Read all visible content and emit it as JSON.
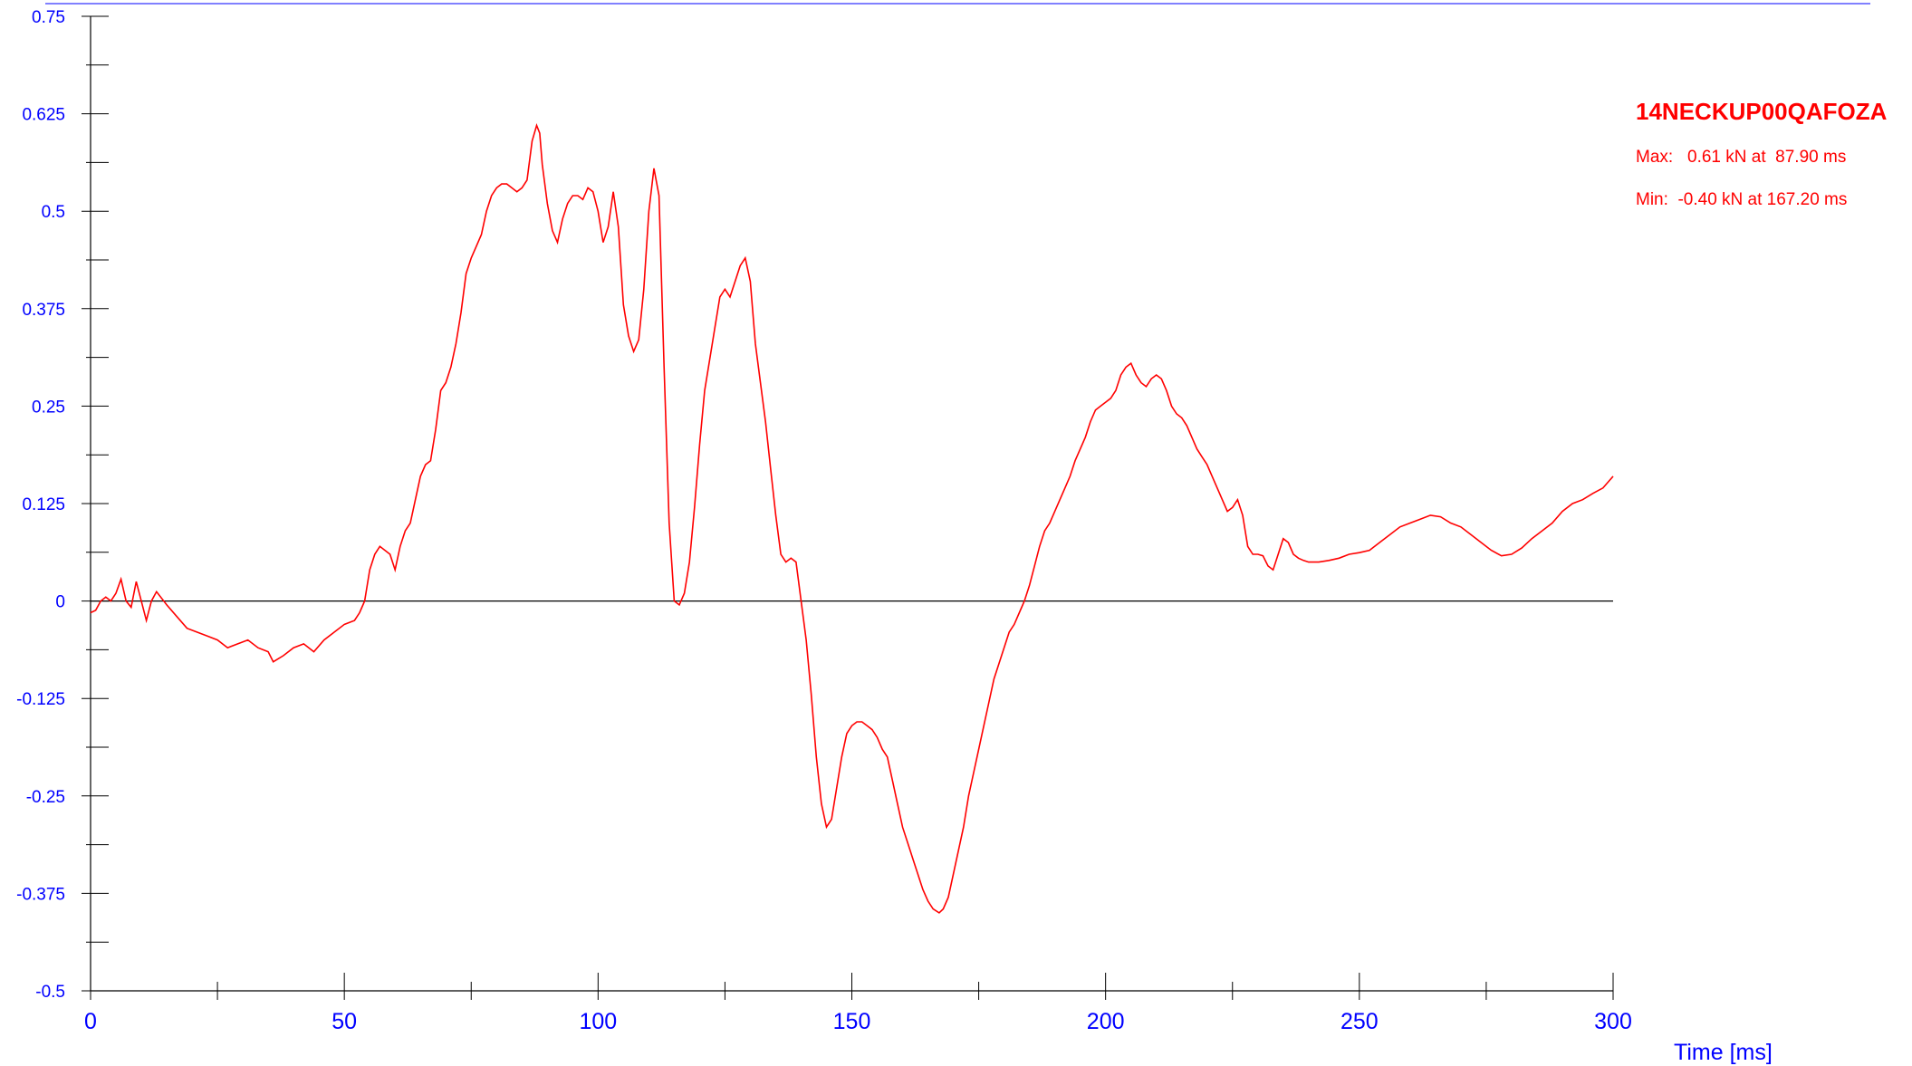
{
  "chart_data": {
    "type": "line",
    "xlabel": "Time [ms]",
    "ylabel": "",
    "xlim": [
      0,
      300
    ],
    "ylim": [
      -0.5,
      0.75
    ],
    "x_ticks": [
      0,
      50,
      100,
      150,
      200,
      250,
      300
    ],
    "x_tick_labels": [
      "0",
      "50",
      "100",
      "150",
      "200",
      "250",
      "300"
    ],
    "y_ticks": [
      0.75,
      0.625,
      0.5,
      0.375,
      0.25,
      0.125,
      0,
      -0.125,
      -0.25,
      -0.375,
      -0.5
    ],
    "y_tick_labels": [
      "0.75",
      "0.625",
      "0.5",
      "0.375",
      "0.25",
      "0.125",
      "0",
      "-0.125",
      "-0.25",
      "-0.375",
      "-0.5"
    ],
    "zero_line": true,
    "top_reference_line": true,
    "legend_position": "top-right",
    "series": [
      {
        "name": "14NECKUP00QAFOZA",
        "color": "#ff0000",
        "max_label": "Max:   0.61 kN at  87.90 ms",
        "min_label": "Min:  -0.40 kN at 167.20 ms",
        "points": [
          [
            0,
            -0.015
          ],
          [
            1,
            -0.012
          ],
          [
            2,
            0.0
          ],
          [
            3,
            0.005
          ],
          [
            4,
            0.0
          ],
          [
            5,
            0.01
          ],
          [
            6,
            0.028
          ],
          [
            7,
            0.0
          ],
          [
            8,
            -0.008
          ],
          [
            9,
            0.025
          ],
          [
            10,
            0.0
          ],
          [
            11,
            -0.025
          ],
          [
            12,
            0.0
          ],
          [
            13,
            0.012
          ],
          [
            15,
            -0.005
          ],
          [
            17,
            -0.02
          ],
          [
            19,
            -0.035
          ],
          [
            21,
            -0.04
          ],
          [
            23,
            -0.045
          ],
          [
            25,
            -0.05
          ],
          [
            27,
            -0.06
          ],
          [
            29,
            -0.055
          ],
          [
            31,
            -0.05
          ],
          [
            33,
            -0.06
          ],
          [
            35,
            -0.065
          ],
          [
            36,
            -0.078
          ],
          [
            38,
            -0.07
          ],
          [
            40,
            -0.06
          ],
          [
            42,
            -0.055
          ],
          [
            44,
            -0.065
          ],
          [
            46,
            -0.05
          ],
          [
            48,
            -0.04
          ],
          [
            50,
            -0.03
          ],
          [
            52,
            -0.025
          ],
          [
            53,
            -0.015
          ],
          [
            54,
            0.0
          ],
          [
            55,
            0.04
          ],
          [
            56,
            0.06
          ],
          [
            57,
            0.07
          ],
          [
            58,
            0.065
          ],
          [
            59,
            0.06
          ],
          [
            60,
            0.04
          ],
          [
            61,
            0.07
          ],
          [
            62,
            0.09
          ],
          [
            63,
            0.1
          ],
          [
            64,
            0.13
          ],
          [
            65,
            0.16
          ],
          [
            66,
            0.175
          ],
          [
            67,
            0.18
          ],
          [
            68,
            0.22
          ],
          [
            69,
            0.27
          ],
          [
            70,
            0.28
          ],
          [
            71,
            0.3
          ],
          [
            72,
            0.33
          ],
          [
            73,
            0.37
          ],
          [
            74,
            0.42
          ],
          [
            75,
            0.44
          ],
          [
            76,
            0.455
          ],
          [
            77,
            0.47
          ],
          [
            78,
            0.5
          ],
          [
            79,
            0.52
          ],
          [
            80,
            0.53
          ],
          [
            81,
            0.535
          ],
          [
            82,
            0.535
          ],
          [
            83,
            0.53
          ],
          [
            84,
            0.525
          ],
          [
            85,
            0.53
          ],
          [
            86,
            0.54
          ],
          [
            87,
            0.59
          ],
          [
            87.9,
            0.61
          ],
          [
            88.5,
            0.6
          ],
          [
            89,
            0.56
          ],
          [
            90,
            0.51
          ],
          [
            91,
            0.475
          ],
          [
            92,
            0.46
          ],
          [
            93,
            0.49
          ],
          [
            94,
            0.51
          ],
          [
            95,
            0.52
          ],
          [
            96,
            0.52
          ],
          [
            97,
            0.515
          ],
          [
            98,
            0.53
          ],
          [
            99,
            0.525
          ],
          [
            100,
            0.5
          ],
          [
            101,
            0.46
          ],
          [
            102,
            0.48
          ],
          [
            103,
            0.525
          ],
          [
            104,
            0.48
          ],
          [
            105,
            0.38
          ],
          [
            106,
            0.34
          ],
          [
            107,
            0.32
          ],
          [
            108,
            0.335
          ],
          [
            109,
            0.4
          ],
          [
            110,
            0.5
          ],
          [
            111,
            0.555
          ],
          [
            112,
            0.52
          ],
          [
            113,
            0.3
          ],
          [
            114,
            0.1
          ],
          [
            115,
            0.0
          ],
          [
            116,
            -0.005
          ],
          [
            117,
            0.01
          ],
          [
            118,
            0.05
          ],
          [
            119,
            0.12
          ],
          [
            120,
            0.2
          ],
          [
            121,
            0.27
          ],
          [
            122,
            0.31
          ],
          [
            123,
            0.35
          ],
          [
            124,
            0.39
          ],
          [
            125,
            0.4
          ],
          [
            126,
            0.39
          ],
          [
            127,
            0.41
          ],
          [
            128,
            0.43
          ],
          [
            129,
            0.44
          ],
          [
            130,
            0.41
          ],
          [
            131,
            0.33
          ],
          [
            132,
            0.28
          ],
          [
            133,
            0.23
          ],
          [
            134,
            0.17
          ],
          [
            135,
            0.11
          ],
          [
            136,
            0.06
          ],
          [
            137,
            0.05
          ],
          [
            138,
            0.055
          ],
          [
            139,
            0.05
          ],
          [
            140,
            0.0
          ],
          [
            141,
            -0.05
          ],
          [
            142,
            -0.12
          ],
          [
            143,
            -0.2
          ],
          [
            144,
            -0.26
          ],
          [
            145,
            -0.29
          ],
          [
            146,
            -0.28
          ],
          [
            147,
            -0.24
          ],
          [
            148,
            -0.2
          ],
          [
            149,
            -0.17
          ],
          [
            150,
            -0.16
          ],
          [
            151,
            -0.155
          ],
          [
            152,
            -0.155
          ],
          [
            153,
            -0.16
          ],
          [
            154,
            -0.165
          ],
          [
            155,
            -0.175
          ],
          [
            156,
            -0.19
          ],
          [
            157,
            -0.2
          ],
          [
            158,
            -0.23
          ],
          [
            159,
            -0.26
          ],
          [
            160,
            -0.29
          ],
          [
            161,
            -0.31
          ],
          [
            162,
            -0.33
          ],
          [
            163,
            -0.35
          ],
          [
            164,
            -0.37
          ],
          [
            165,
            -0.385
          ],
          [
            166,
            -0.395
          ],
          [
            167.2,
            -0.4
          ],
          [
            168,
            -0.395
          ],
          [
            169,
            -0.38
          ],
          [
            170,
            -0.35
          ],
          [
            171,
            -0.32
          ],
          [
            172,
            -0.29
          ],
          [
            173,
            -0.25
          ],
          [
            174,
            -0.22
          ],
          [
            175,
            -0.19
          ],
          [
            176,
            -0.16
          ],
          [
            177,
            -0.13
          ],
          [
            178,
            -0.1
          ],
          [
            179,
            -0.08
          ],
          [
            180,
            -0.06
          ],
          [
            181,
            -0.04
          ],
          [
            182,
            -0.03
          ],
          [
            183,
            -0.015
          ],
          [
            184,
            0.0
          ],
          [
            185,
            0.02
          ],
          [
            186,
            0.045
          ],
          [
            187,
            0.07
          ],
          [
            188,
            0.09
          ],
          [
            189,
            0.1
          ],
          [
            190,
            0.115
          ],
          [
            191,
            0.13
          ],
          [
            192,
            0.145
          ],
          [
            193,
            0.16
          ],
          [
            194,
            0.18
          ],
          [
            195,
            0.195
          ],
          [
            196,
            0.21
          ],
          [
            197,
            0.23
          ],
          [
            198,
            0.245
          ],
          [
            199,
            0.25
          ],
          [
            200,
            0.255
          ],
          [
            201,
            0.26
          ],
          [
            202,
            0.27
          ],
          [
            203,
            0.29
          ],
          [
            204,
            0.3
          ],
          [
            205,
            0.305
          ],
          [
            206,
            0.29
          ],
          [
            207,
            0.28
          ],
          [
            208,
            0.275
          ],
          [
            209,
            0.285
          ],
          [
            210,
            0.29
          ],
          [
            211,
            0.285
          ],
          [
            212,
            0.27
          ],
          [
            213,
            0.25
          ],
          [
            214,
            0.24
          ],
          [
            215,
            0.235
          ],
          [
            216,
            0.225
          ],
          [
            217,
            0.21
          ],
          [
            218,
            0.195
          ],
          [
            219,
            0.185
          ],
          [
            220,
            0.175
          ],
          [
            221,
            0.16
          ],
          [
            222,
            0.145
          ],
          [
            223,
            0.13
          ],
          [
            224,
            0.115
          ],
          [
            225,
            0.12
          ],
          [
            226,
            0.13
          ],
          [
            227,
            0.11
          ],
          [
            228,
            0.07
          ],
          [
            229,
            0.06
          ],
          [
            230,
            0.06
          ],
          [
            231,
            0.058
          ],
          [
            232,
            0.045
          ],
          [
            233,
            0.04
          ],
          [
            234,
            0.06
          ],
          [
            235,
            0.08
          ],
          [
            236,
            0.075
          ],
          [
            237,
            0.06
          ],
          [
            238,
            0.055
          ],
          [
            239,
            0.052
          ],
          [
            240,
            0.05
          ],
          [
            242,
            0.05
          ],
          [
            244,
            0.052
          ],
          [
            246,
            0.055
          ],
          [
            248,
            0.06
          ],
          [
            250,
            0.062
          ],
          [
            252,
            0.065
          ],
          [
            254,
            0.075
          ],
          [
            256,
            0.085
          ],
          [
            258,
            0.095
          ],
          [
            260,
            0.1
          ],
          [
            262,
            0.105
          ],
          [
            264,
            0.11
          ],
          [
            266,
            0.108
          ],
          [
            268,
            0.1
          ],
          [
            270,
            0.095
          ],
          [
            272,
            0.085
          ],
          [
            274,
            0.075
          ],
          [
            276,
            0.065
          ],
          [
            278,
            0.058
          ],
          [
            280,
            0.06
          ],
          [
            282,
            0.068
          ],
          [
            284,
            0.08
          ],
          [
            286,
            0.09
          ],
          [
            288,
            0.1
          ],
          [
            290,
            0.115
          ],
          [
            292,
            0.125
          ],
          [
            294,
            0.13
          ],
          [
            296,
            0.138
          ],
          [
            298,
            0.145
          ],
          [
            300,
            0.16
          ]
        ]
      }
    ]
  }
}
